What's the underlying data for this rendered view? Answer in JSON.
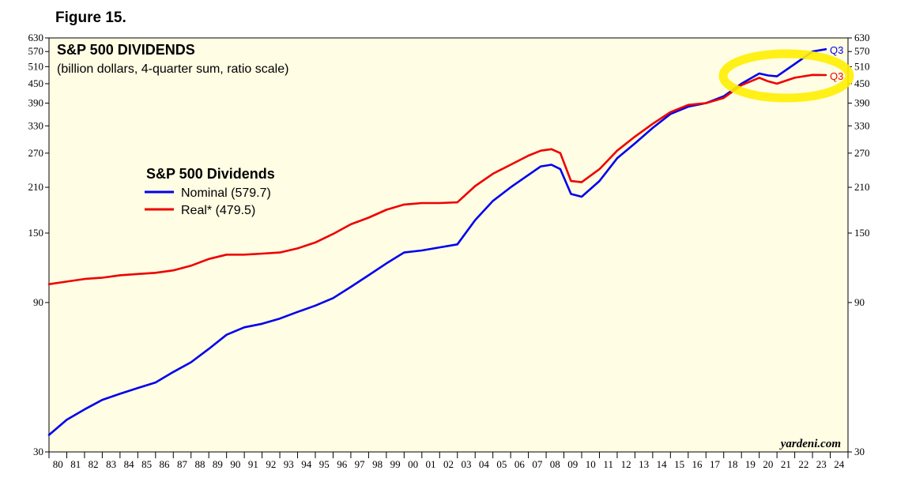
{
  "figure_label": "Figure 15.",
  "colors": {
    "plot_bg": "#fffde4",
    "nominal": "#0000ee",
    "real": "#ee0000",
    "highlight": "#ffee00"
  },
  "chart_data": {
    "type": "line",
    "title": "S&P 500 DIVIDENDS",
    "subtitle": "(billion dollars, 4-quarter sum, ratio scale)",
    "scale": "log",
    "ylim": [
      30,
      630
    ],
    "yticks": [
      30,
      90,
      150,
      210,
      270,
      330,
      390,
      450,
      510,
      570,
      630
    ],
    "xlim": [
      1980,
      2025
    ],
    "xtick_labels": [
      "80",
      "81",
      "82",
      "83",
      "84",
      "85",
      "86",
      "87",
      "88",
      "89",
      "90",
      "91",
      "92",
      "93",
      "94",
      "95",
      "96",
      "97",
      "98",
      "99",
      "00",
      "01",
      "02",
      "03",
      "04",
      "05",
      "06",
      "07",
      "08",
      "09",
      "10",
      "11",
      "12",
      "13",
      "14",
      "15",
      "16",
      "17",
      "18",
      "19",
      "20",
      "21",
      "22",
      "23",
      "24"
    ],
    "legend": {
      "title": "S&P 500 Dividends",
      "entries": [
        "Nominal (579.7)",
        "Real* (479.5)"
      ]
    },
    "credit": "yardeni.com",
    "end_label": "Q3",
    "series": [
      {
        "name": "Nominal",
        "latest": 579.7,
        "x": [
          1980.0,
          1981.0,
          1982.0,
          1983.0,
          1984.0,
          1985.0,
          1986.0,
          1987.0,
          1988.0,
          1989.0,
          1990.0,
          1991.0,
          1992.0,
          1993.0,
          1994.0,
          1995.0,
          1996.0,
          1997.0,
          1998.0,
          1999.0,
          2000.0,
          2001.0,
          2002.0,
          2003.0,
          2004.0,
          2005.0,
          2006.0,
          2007.0,
          2007.7,
          2008.3,
          2008.8,
          2009.4,
          2010.0,
          2011.0,
          2012.0,
          2013.0,
          2014.0,
          2015.0,
          2016.0,
          2017.0,
          2018.0,
          2019.0,
          2020.0,
          2020.5,
          2021.0,
          2022.0,
          2023.0,
          2023.75
        ],
        "values": [
          34,
          38,
          41,
          44,
          46,
          48,
          50,
          54,
          58,
          64,
          71,
          75,
          77,
          80,
          84,
          88,
          93,
          101,
          110,
          120,
          130,
          132,
          135,
          138,
          165,
          190,
          210,
          230,
          245,
          248,
          240,
          200,
          196,
          220,
          260,
          290,
          325,
          360,
          380,
          390,
          410,
          450,
          485,
          478,
          475,
          520,
          570,
          579.7
        ]
      },
      {
        "name": "Real*",
        "latest": 479.5,
        "x": [
          1980.0,
          1981.0,
          1982.0,
          1983.0,
          1984.0,
          1985.0,
          1986.0,
          1987.0,
          1988.0,
          1989.0,
          1990.0,
          1991.0,
          1992.0,
          1993.0,
          1994.0,
          1995.0,
          1996.0,
          1997.0,
          1998.0,
          1999.0,
          2000.0,
          2001.0,
          2002.0,
          2003.0,
          2004.0,
          2005.0,
          2006.0,
          2007.0,
          2007.7,
          2008.3,
          2008.8,
          2009.4,
          2010.0,
          2011.0,
          2012.0,
          2013.0,
          2014.0,
          2015.0,
          2016.0,
          2017.0,
          2018.0,
          2019.0,
          2020.0,
          2020.5,
          2021.0,
          2022.0,
          2023.0,
          2023.75
        ],
        "values": [
          103,
          105,
          107,
          108,
          110,
          111,
          112,
          114,
          118,
          124,
          128,
          128,
          129,
          130,
          134,
          140,
          149,
          160,
          168,
          178,
          185,
          187,
          187,
          188,
          212,
          232,
          248,
          265,
          275,
          278,
          270,
          220,
          218,
          240,
          275,
          305,
          335,
          365,
          385,
          390,
          405,
          445,
          470,
          458,
          450,
          470,
          480,
          479.5
        ]
      }
    ]
  }
}
